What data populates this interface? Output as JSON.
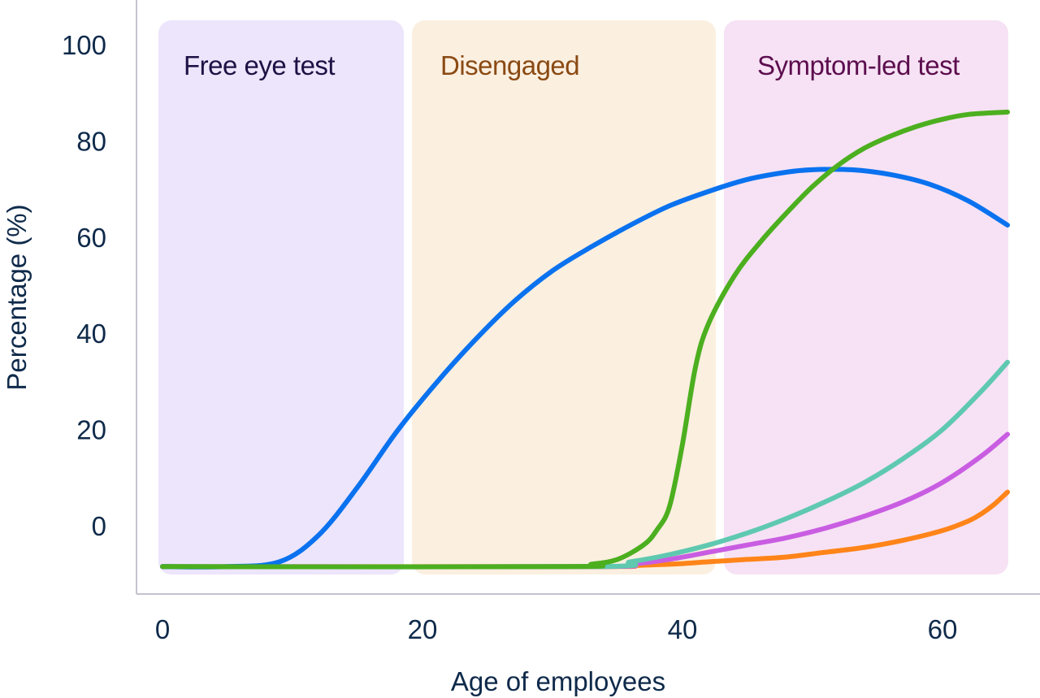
{
  "chart_data": {
    "type": "line",
    "xlabel": "Age of employees",
    "ylabel": "Percentage (%)",
    "x_ticks": [
      0,
      20,
      40,
      60
    ],
    "y_ticks": [
      0,
      20,
      40,
      60,
      80,
      100
    ],
    "xlim": [
      0,
      65
    ],
    "ylim": [
      -8.5,
      100
    ],
    "grid": false,
    "regions": [
      {
        "label": "Free eye test",
        "x_start": 0,
        "x_end": 18.5,
        "fill": "#ece5fb",
        "text_color": "#1e1145"
      },
      {
        "label": "Disengaged",
        "x_start": 19.5,
        "x_end": 42.5,
        "fill": "#fbefe0",
        "text_color": "#8a4a13"
      },
      {
        "label": "Symptom-led test",
        "x_start": 43.5,
        "x_end": 65,
        "fill": "#f6e2f4",
        "text_color": "#5c0d4e"
      }
    ],
    "series": [
      {
        "color": "#0a72ef",
        "x": [
          0,
          5,
          9,
          12,
          15,
          18,
          21,
          24,
          27,
          30,
          33,
          36,
          39,
          42,
          45,
          48,
          50,
          53,
          56,
          59,
          62,
          65
        ],
        "y": [
          -8.5,
          -8.5,
          -7.5,
          -2,
          8,
          19.5,
          29.5,
          38.5,
          46.5,
          53,
          58,
          62.5,
          66.5,
          69.5,
          72,
          73.5,
          74,
          74,
          73,
          71,
          67.5,
          62.5
        ]
      },
      {
        "color": "#4caf1f",
        "x": [
          0,
          31,
          33,
          35,
          37,
          38,
          39,
          40,
          41,
          42,
          44,
          46,
          48,
          50,
          52,
          54,
          56,
          58,
          60,
          62,
          65
        ],
        "y": [
          -8.5,
          -8.5,
          -8,
          -7,
          -4,
          -1,
          4,
          17,
          33,
          42,
          52,
          59,
          65,
          70.5,
          75,
          78.5,
          81,
          83,
          84.5,
          85.5,
          86
        ]
      },
      {
        "color": "#5fc9b0",
        "x": [
          0,
          33,
          36,
          39,
          42,
          45,
          48,
          51,
          54,
          57,
          60,
          63,
          65
        ],
        "y": [
          -8.5,
          -8.5,
          -7.5,
          -6,
          -4,
          -1.5,
          1.5,
          5,
          9,
          14,
          20,
          28,
          34
        ]
      },
      {
        "color": "#c95de2",
        "x": [
          0,
          33,
          36,
          39,
          42,
          45,
          48,
          51,
          54,
          57,
          60,
          63,
          65
        ],
        "y": [
          -8.5,
          -8.5,
          -8,
          -7,
          -5.5,
          -4,
          -2.5,
          -0.5,
          2,
          5,
          9,
          14.5,
          19
        ]
      },
      {
        "color": "#ff8419",
        "x": [
          0,
          33,
          36,
          39,
          42,
          45,
          48,
          51,
          54,
          57,
          60,
          62,
          63,
          64,
          65
        ],
        "y": [
          -8.5,
          -8.5,
          -8.3,
          -8,
          -7.5,
          -7,
          -6.5,
          -5.5,
          -4.5,
          -3,
          -1,
          1,
          2.5,
          4.5,
          7
        ]
      }
    ]
  }
}
